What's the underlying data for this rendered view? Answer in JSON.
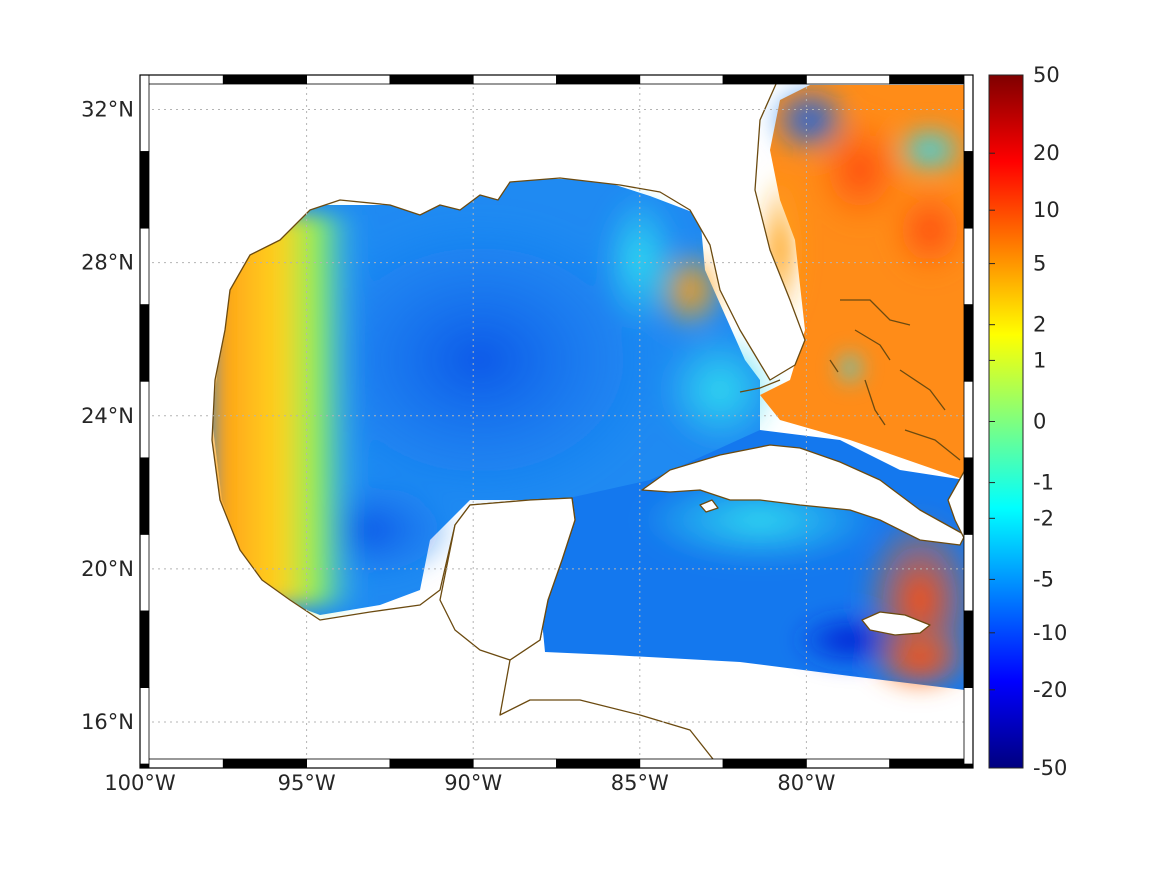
{
  "map": {
    "lon_ticks": [
      {
        "value": -100,
        "label": "100°W"
      },
      {
        "value": -95,
        "label": "95°W"
      },
      {
        "value": -90,
        "label": "90°W"
      },
      {
        "value": -85,
        "label": "85°W"
      },
      {
        "value": -80,
        "label": "80°W"
      }
    ],
    "lat_ticks": [
      {
        "value": 32,
        "label": "32°N"
      },
      {
        "value": 28,
        "label": "28°N"
      },
      {
        "value": 24,
        "label": "24°N"
      },
      {
        "value": 20,
        "label": "20°N"
      },
      {
        "value": 16,
        "label": "16°N"
      }
    ],
    "lon_range": [
      -100,
      -75
    ],
    "lat_range": [
      14.8,
      32.9
    ],
    "grid": true,
    "coastline_color": "#6b4a10",
    "land_color": "#ffffff"
  },
  "colorbar": {
    "labels": [
      "50",
      "20",
      "10",
      "5",
      "2",
      "1",
      "0",
      "-1",
      "-2",
      "-5",
      "-10",
      "-20",
      "-50"
    ],
    "colormap": "jet",
    "scale": "symmetric-log",
    "position": "right"
  }
}
